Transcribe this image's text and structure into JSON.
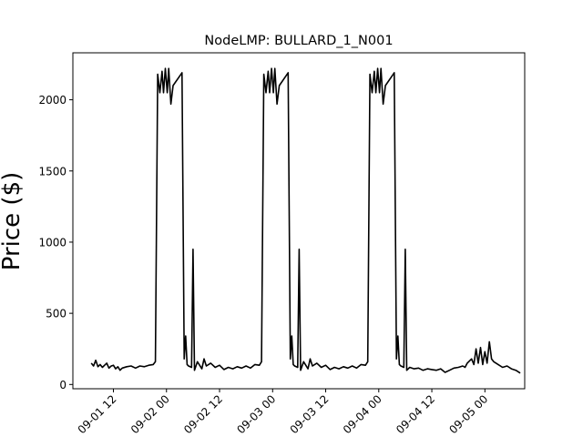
{
  "chart_data": {
    "type": "line",
    "title": "NodeLMP: BULLARD_1_N001",
    "xlabel": "",
    "ylabel": "Price ($)",
    "ylim": [
      -30,
      2330
    ],
    "xlim": [
      "2022-09-01 02:50",
      "2022-09-05 09:00"
    ],
    "grid": false,
    "line_color": "#000000",
    "y_ticks": [
      0,
      500,
      1000,
      1500,
      2000
    ],
    "x_ticks": [
      {
        "t": "2022-09-01 12:00",
        "label": "09-01 12"
      },
      {
        "t": "2022-09-02 00:00",
        "label": "09-02 00"
      },
      {
        "t": "2022-09-02 12:00",
        "label": "09-02 12"
      },
      {
        "t": "2022-09-03 00:00",
        "label": "09-03 00"
      },
      {
        "t": "2022-09-03 12:00",
        "label": "09-03 12"
      },
      {
        "t": "2022-09-04 00:00",
        "label": "09-04 00"
      },
      {
        "t": "2022-09-04 12:00",
        "label": "09-04 12"
      },
      {
        "t": "2022-09-05 00:00",
        "label": "09-05 00"
      }
    ],
    "series": [
      {
        "points": [
          [
            "2022-09-01 07:00",
            150
          ],
          [
            "2022-09-01 07:30",
            130
          ],
          [
            "2022-09-01 08:00",
            170
          ],
          [
            "2022-09-01 08:30",
            125
          ],
          [
            "2022-09-01 09:00",
            140
          ],
          [
            "2022-09-01 09:30",
            120
          ],
          [
            "2022-09-01 10:00",
            135
          ],
          [
            "2022-09-01 10:30",
            150
          ],
          [
            "2022-09-01 11:00",
            115
          ],
          [
            "2022-09-01 11:30",
            130
          ],
          [
            "2022-09-01 12:00",
            135
          ],
          [
            "2022-09-01 12:30",
            110
          ],
          [
            "2022-09-01 13:00",
            125
          ],
          [
            "2022-09-01 13:30",
            100
          ],
          [
            "2022-09-01 14:00",
            115
          ],
          [
            "2022-09-01 15:00",
            125
          ],
          [
            "2022-09-01 16:00",
            130
          ],
          [
            "2022-09-01 17:00",
            115
          ],
          [
            "2022-09-01 18:00",
            130
          ],
          [
            "2022-09-01 19:00",
            125
          ],
          [
            "2022-09-01 20:00",
            135
          ],
          [
            "2022-09-01 21:00",
            140
          ],
          [
            "2022-09-01 21:30",
            160
          ],
          [
            "2022-09-01 22:00",
            2180
          ],
          [
            "2022-09-01 22:30",
            2050
          ],
          [
            "2022-09-01 23:00",
            2200
          ],
          [
            "2022-09-01 23:20",
            2050
          ],
          [
            "2022-09-01 23:45",
            2220
          ],
          [
            "2022-09-02 00:10",
            2050
          ],
          [
            "2022-09-02 00:30",
            2220
          ],
          [
            "2022-09-02 01:00",
            1970
          ],
          [
            "2022-09-02 01:30",
            2100
          ],
          [
            "2022-09-02 03:30",
            2190
          ],
          [
            "2022-09-02 04:00",
            180
          ],
          [
            "2022-09-02 04:20",
            340
          ],
          [
            "2022-09-02 04:40",
            140
          ],
          [
            "2022-09-02 05:00",
            130
          ],
          [
            "2022-09-02 05:40",
            120
          ],
          [
            "2022-09-02 06:00",
            950
          ],
          [
            "2022-09-02 06:20",
            100
          ],
          [
            "2022-09-02 07:00",
            160
          ],
          [
            "2022-09-02 08:00",
            110
          ],
          [
            "2022-09-02 08:30",
            180
          ],
          [
            "2022-09-02 09:00",
            130
          ],
          [
            "2022-09-02 10:00",
            150
          ],
          [
            "2022-09-02 11:00",
            120
          ],
          [
            "2022-09-02 12:00",
            135
          ],
          [
            "2022-09-02 13:00",
            105
          ],
          [
            "2022-09-02 14:00",
            120
          ],
          [
            "2022-09-02 15:00",
            110
          ],
          [
            "2022-09-02 16:00",
            125
          ],
          [
            "2022-09-02 17:00",
            115
          ],
          [
            "2022-09-02 18:00",
            130
          ],
          [
            "2022-09-02 19:00",
            115
          ],
          [
            "2022-09-02 20:00",
            140
          ],
          [
            "2022-09-02 21:00",
            135
          ],
          [
            "2022-09-02 21:30",
            160
          ],
          [
            "2022-09-02 22:00",
            2180
          ],
          [
            "2022-09-02 22:30",
            2050
          ],
          [
            "2022-09-02 23:00",
            2200
          ],
          [
            "2022-09-02 23:20",
            2050
          ],
          [
            "2022-09-02 23:45",
            2220
          ],
          [
            "2022-09-03 00:10",
            2050
          ],
          [
            "2022-09-03 00:30",
            2220
          ],
          [
            "2022-09-03 01:00",
            1970
          ],
          [
            "2022-09-03 01:30",
            2100
          ],
          [
            "2022-09-03 03:30",
            2190
          ],
          [
            "2022-09-03 04:00",
            180
          ],
          [
            "2022-09-03 04:20",
            340
          ],
          [
            "2022-09-03 04:40",
            140
          ],
          [
            "2022-09-03 05:00",
            130
          ],
          [
            "2022-09-03 05:40",
            120
          ],
          [
            "2022-09-03 06:00",
            950
          ],
          [
            "2022-09-03 06:20",
            100
          ],
          [
            "2022-09-03 07:00",
            160
          ],
          [
            "2022-09-03 08:00",
            110
          ],
          [
            "2022-09-03 08:30",
            180
          ],
          [
            "2022-09-03 09:00",
            130
          ],
          [
            "2022-09-03 10:00",
            150
          ],
          [
            "2022-09-03 11:00",
            120
          ],
          [
            "2022-09-03 12:00",
            135
          ],
          [
            "2022-09-03 13:00",
            105
          ],
          [
            "2022-09-03 14:00",
            120
          ],
          [
            "2022-09-03 15:00",
            110
          ],
          [
            "2022-09-03 16:00",
            125
          ],
          [
            "2022-09-03 17:00",
            115
          ],
          [
            "2022-09-03 18:00",
            130
          ],
          [
            "2022-09-03 19:00",
            115
          ],
          [
            "2022-09-03 20:00",
            140
          ],
          [
            "2022-09-03 21:00",
            135
          ],
          [
            "2022-09-03 21:30",
            160
          ],
          [
            "2022-09-03 22:00",
            2180
          ],
          [
            "2022-09-03 22:30",
            2050
          ],
          [
            "2022-09-03 23:00",
            2200
          ],
          [
            "2022-09-03 23:20",
            2050
          ],
          [
            "2022-09-03 23:45",
            2220
          ],
          [
            "2022-09-04 00:10",
            2050
          ],
          [
            "2022-09-04 00:30",
            2220
          ],
          [
            "2022-09-04 01:00",
            1970
          ],
          [
            "2022-09-04 01:30",
            2100
          ],
          [
            "2022-09-04 03:30",
            2190
          ],
          [
            "2022-09-04 04:00",
            180
          ],
          [
            "2022-09-04 04:20",
            340
          ],
          [
            "2022-09-04 04:40",
            140
          ],
          [
            "2022-09-04 05:00",
            130
          ],
          [
            "2022-09-04 05:40",
            120
          ],
          [
            "2022-09-04 06:00",
            950
          ],
          [
            "2022-09-04 06:20",
            100
          ],
          [
            "2022-09-04 07:00",
            120
          ],
          [
            "2022-09-04 08:00",
            110
          ],
          [
            "2022-09-04 09:00",
            115
          ],
          [
            "2022-09-04 10:00",
            100
          ],
          [
            "2022-09-04 11:00",
            110
          ],
          [
            "2022-09-04 12:00",
            105
          ],
          [
            "2022-09-04 13:00",
            100
          ],
          [
            "2022-09-04 14:00",
            110
          ],
          [
            "2022-09-04 15:00",
            85
          ],
          [
            "2022-09-04 16:00",
            100
          ],
          [
            "2022-09-04 17:00",
            115
          ],
          [
            "2022-09-04 18:00",
            120
          ],
          [
            "2022-09-04 19:00",
            130
          ],
          [
            "2022-09-04 19:30",
            120
          ],
          [
            "2022-09-04 20:00",
            150
          ],
          [
            "2022-09-04 21:00",
            180
          ],
          [
            "2022-09-04 21:30",
            140
          ],
          [
            "2022-09-04 22:00",
            250
          ],
          [
            "2022-09-04 22:30",
            150
          ],
          [
            "2022-09-04 23:00",
            260
          ],
          [
            "2022-09-04 23:30",
            140
          ],
          [
            "2022-09-05 00:00",
            230
          ],
          [
            "2022-09-05 00:30",
            150
          ],
          [
            "2022-09-05 01:00",
            300
          ],
          [
            "2022-09-05 01:30",
            180
          ],
          [
            "2022-09-05 02:00",
            160
          ],
          [
            "2022-09-05 03:00",
            140
          ],
          [
            "2022-09-05 04:00",
            120
          ],
          [
            "2022-09-05 05:00",
            130
          ],
          [
            "2022-09-05 06:00",
            110
          ],
          [
            "2022-09-05 07:00",
            100
          ],
          [
            "2022-09-05 08:00",
            80
          ]
        ]
      }
    ]
  }
}
